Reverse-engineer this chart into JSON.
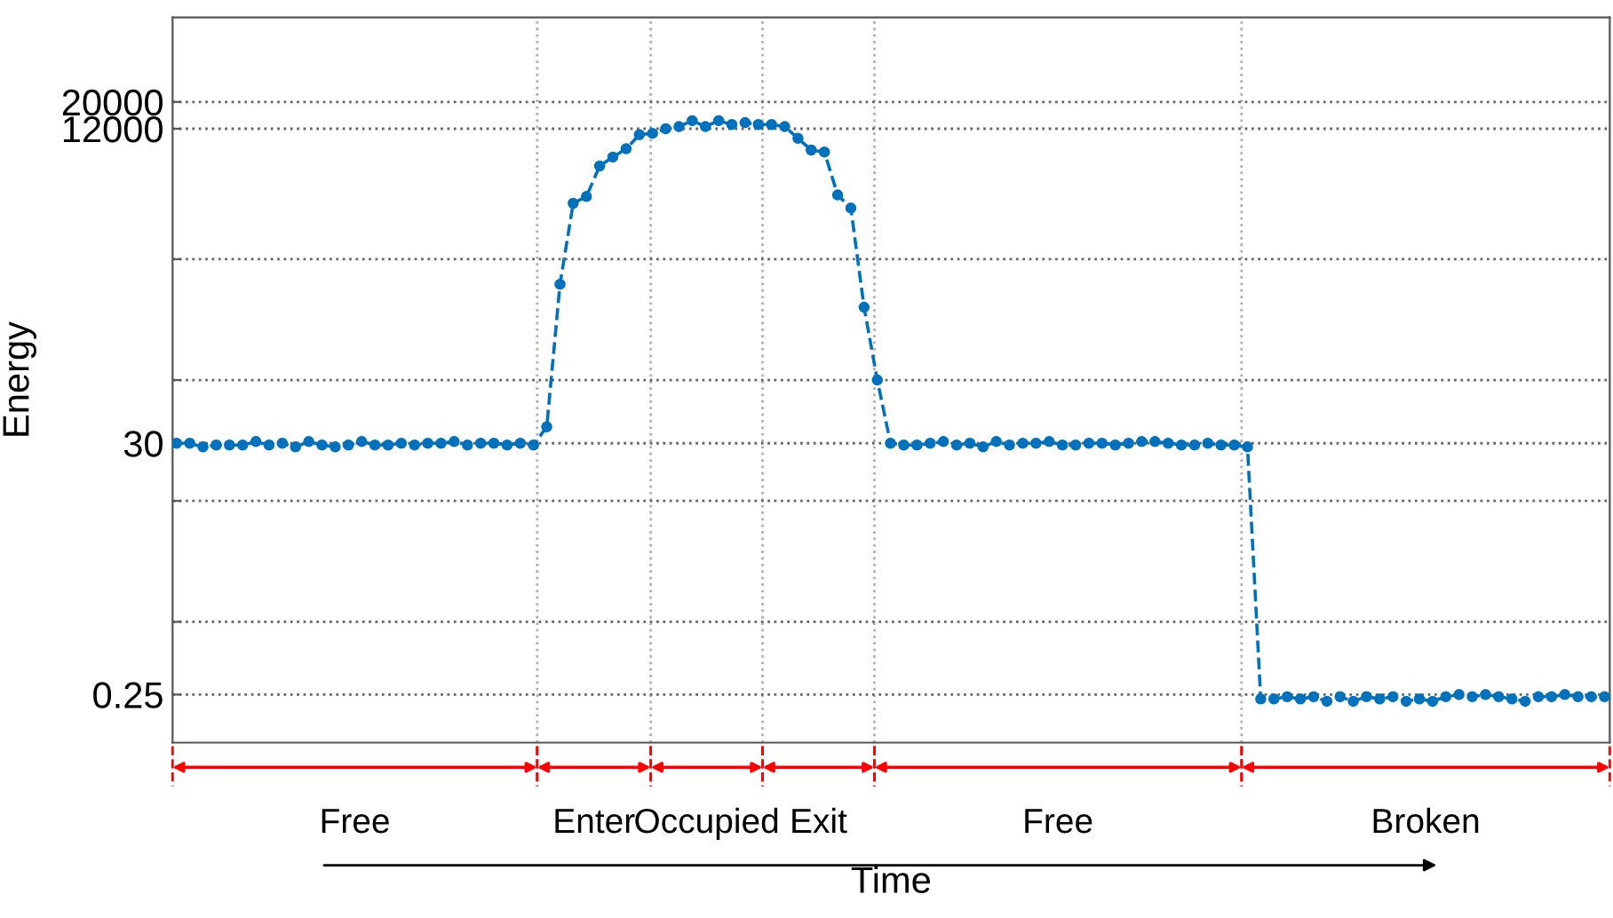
{
  "chart_data": {
    "type": "line",
    "xlabel": "Time",
    "ylabel": "Energy",
    "log": "y",
    "ylim": [
      0.1,
      100000
    ],
    "yticks": [
      0.25,
      {
        "value": 1,
        "label": null
      },
      {
        "value": 10,
        "label": null
      },
      30,
      {
        "value": 100,
        "label": null
      },
      {
        "value": 1000,
        "label": null
      },
      12000,
      20000
    ],
    "tick_labels": "y",
    "grid": "y",
    "marker": "circle",
    "line_style": "dashed",
    "categories": [
      null,
      null,
      null,
      null,
      null,
      null,
      null,
      null,
      null,
      null,
      null,
      null,
      null,
      null,
      null,
      null,
      null,
      null,
      null,
      null,
      null,
      null,
      null,
      null,
      null,
      null,
      null,
      null,
      null,
      null,
      null,
      null,
      null,
      null,
      null,
      null,
      null,
      null,
      null,
      null,
      null,
      null,
      null,
      null,
      null,
      null,
      null,
      null,
      null,
      null,
      null,
      null,
      null,
      null,
      null,
      null,
      null,
      null,
      null,
      null,
      null,
      null,
      null,
      null,
      null,
      null,
      null,
      null,
      null,
      null,
      null,
      null,
      null,
      null,
      null,
      null,
      null,
      null,
      null,
      null,
      null,
      null,
      null,
      null,
      null,
      null,
      null,
      null,
      null,
      null,
      null,
      null,
      null,
      null,
      null,
      null,
      null,
      null,
      null,
      null,
      null,
      null,
      null,
      null,
      null,
      null,
      null,
      null,
      null
    ],
    "series": [
      {
        "color": "#0072bd",
        "values": [
          30,
          30,
          28,
          29,
          29,
          29,
          31,
          29,
          30,
          28,
          31,
          29,
          28,
          29,
          31,
          29,
          29,
          30,
          29,
          30,
          30,
          31,
          29,
          30,
          30,
          29,
          30,
          29,
          41,
          620,
          2900,
          3300,
          5900,
          7000,
          8200,
          10700,
          11000,
          12000,
          12500,
          14000,
          12500,
          14000,
          13000,
          13500,
          13000,
          13000,
          12500,
          10000,
          8000,
          7700,
          3400,
          2650,
          400,
          100,
          30,
          29,
          29,
          30,
          31,
          29,
          30,
          28,
          31,
          29,
          30,
          30,
          31,
          29,
          29,
          30,
          30,
          29,
          30,
          31,
          31,
          30,
          29,
          29,
          30,
          29,
          29,
          28,
          0.23,
          0.23,
          0.24,
          0.23,
          0.24,
          0.22,
          0.24,
          0.22,
          0.24,
          0.23,
          0.24,
          0.22,
          0.23,
          0.22,
          0.24,
          0.25,
          0.24,
          0.25,
          0.24,
          0.23,
          0.22,
          0.24,
          0.24,
          0.25,
          0.24,
          0.24,
          0.24
        ]
      }
    ],
    "annotations": [
      "Free",
      "Enter",
      "Occupied",
      "Exit",
      "Free",
      "Broken"
    ]
  }
}
